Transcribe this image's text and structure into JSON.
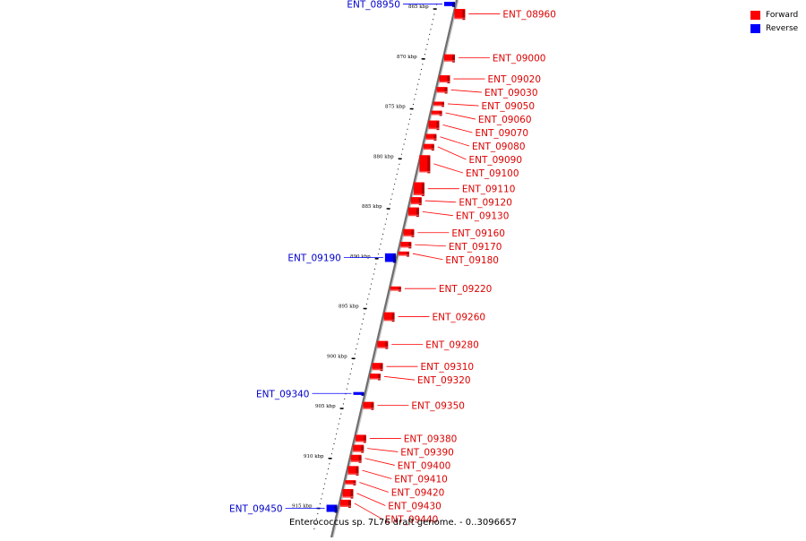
{
  "legend": {
    "forward_label": "Forward",
    "reverse_label": "Reverse",
    "forward_color": "#ff0000",
    "reverse_color": "#0000ff"
  },
  "caption": "Enterococcus sp. 7L76 draft genome. - 0..3096657",
  "scale_unit": "kbp",
  "ticks": [
    865,
    870,
    875,
    880,
    885,
    890,
    895,
    900,
    905,
    910,
    915
  ],
  "genes": [
    {
      "label": "ENT_08950",
      "strand": "reverse",
      "kbp": 864.5,
      "size": 3
    },
    {
      "label": "ENT_08960",
      "strand": "forward",
      "kbp": 865.5,
      "size": 7
    },
    {
      "label": "ENT_09000",
      "strand": "forward",
      "kbp": 869.9,
      "size": 5
    },
    {
      "label": "ENT_09020",
      "strand": "forward",
      "kbp": 872.0,
      "size": 5
    },
    {
      "label": "ENT_09030",
      "strand": "forward",
      "kbp": 873.1,
      "size": 4
    },
    {
      "label": "ENT_09050",
      "strand": "forward",
      "kbp": 874.5,
      "size": 3
    },
    {
      "label": "ENT_09060",
      "strand": "forward",
      "kbp": 875.4,
      "size": 3
    },
    {
      "label": "ENT_09070",
      "strand": "forward",
      "kbp": 876.6,
      "size": 6
    },
    {
      "label": "ENT_09080",
      "strand": "forward",
      "kbp": 877.8,
      "size": 4
    },
    {
      "label": "ENT_09090",
      "strand": "forward",
      "kbp": 878.8,
      "size": 4
    },
    {
      "label": "ENT_09100",
      "strand": "forward",
      "kbp": 880.5,
      "size": 12
    },
    {
      "label": "ENT_09110",
      "strand": "forward",
      "kbp": 883.0,
      "size": 9
    },
    {
      "label": "ENT_09120",
      "strand": "forward",
      "kbp": 884.2,
      "size": 5
    },
    {
      "label": "ENT_09130",
      "strand": "forward",
      "kbp": 885.3,
      "size": 6
    },
    {
      "label": "ENT_09160",
      "strand": "forward",
      "kbp": 887.4,
      "size": 5
    },
    {
      "label": "ENT_09170",
      "strand": "forward",
      "kbp": 888.6,
      "size": 4
    },
    {
      "label": "ENT_09180",
      "strand": "forward",
      "kbp": 889.5,
      "size": 3
    },
    {
      "label": "ENT_09190",
      "strand": "reverse",
      "kbp": 889.9,
      "size": 6
    },
    {
      "label": "ENT_09220",
      "strand": "forward",
      "kbp": 893.0,
      "size": 3
    },
    {
      "label": "ENT_09260",
      "strand": "forward",
      "kbp": 895.8,
      "size": 6
    },
    {
      "label": "ENT_09280",
      "strand": "forward",
      "kbp": 898.6,
      "size": 5
    },
    {
      "label": "ENT_09310",
      "strand": "forward",
      "kbp": 900.8,
      "size": 5
    },
    {
      "label": "ENT_09320",
      "strand": "forward",
      "kbp": 901.8,
      "size": 4
    },
    {
      "label": "ENT_09340",
      "strand": "reverse",
      "kbp": 903.5,
      "size": 2
    },
    {
      "label": "ENT_09350",
      "strand": "forward",
      "kbp": 904.7,
      "size": 5
    },
    {
      "label": "ENT_09380",
      "strand": "forward",
      "kbp": 908.0,
      "size": 5
    },
    {
      "label": "ENT_09390",
      "strand": "forward",
      "kbp": 909.0,
      "size": 5
    },
    {
      "label": "ENT_09400",
      "strand": "forward",
      "kbp": 910.0,
      "size": 5
    },
    {
      "label": "ENT_09410",
      "strand": "forward",
      "kbp": 911.2,
      "size": 6
    },
    {
      "label": "ENT_09420",
      "strand": "forward",
      "kbp": 912.4,
      "size": 3
    },
    {
      "label": "ENT_09430",
      "strand": "forward",
      "kbp": 913.5,
      "size": 6
    },
    {
      "label": "ENT_09440",
      "strand": "forward",
      "kbp": 914.5,
      "size": 5
    },
    {
      "label": "ENT_09450",
      "strand": "reverse",
      "kbp": 915.0,
      "size": 5
    }
  ]
}
